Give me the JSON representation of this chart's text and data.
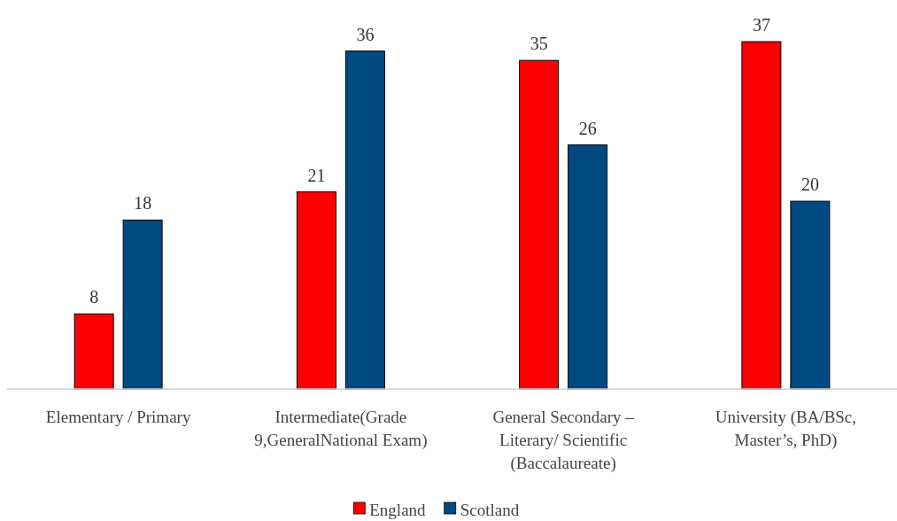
{
  "chart_data": {
    "type": "bar",
    "categories": [
      "Elementary / Primary",
      "Intermediate(Grade 9,GeneralNational Exam)",
      "General Secondary – Literary/ Scientific (Baccalaureate)",
      "University (BA/BSc, Master’s, PhD)"
    ],
    "series": [
      {
        "name": "England",
        "color": "#ff0000",
        "values": [
          8,
          21,
          35,
          37
        ]
      },
      {
        "name": "Scotland",
        "color": "#004a84",
        "values": [
          18,
          36,
          26,
          20
        ]
      }
    ],
    "data_labels": true,
    "legend": "bottom"
  }
}
